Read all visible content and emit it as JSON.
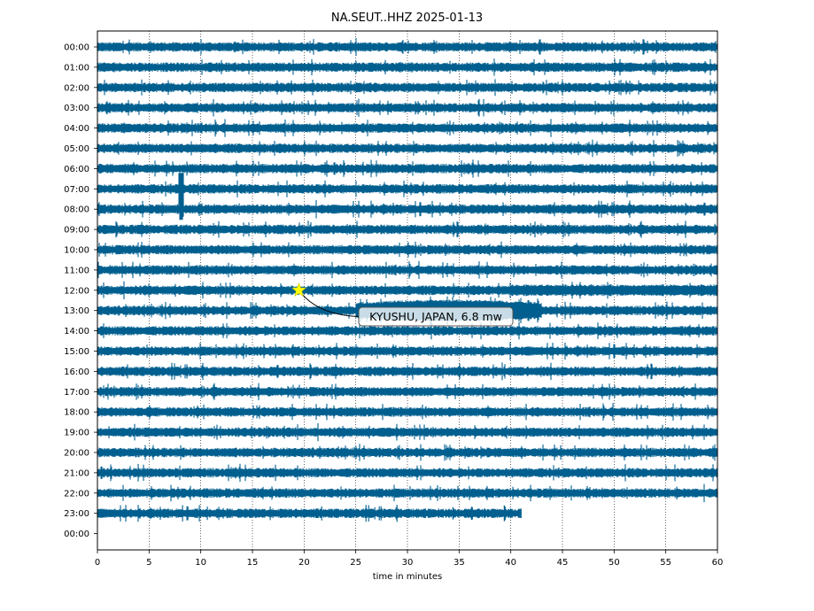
{
  "chart_data": {
    "type": "line",
    "title": "NA.SEUT..HHZ 2025-01-13",
    "xlabel": "time in minutes",
    "ylabel": "",
    "xlim": [
      0,
      60
    ],
    "x_ticks": [
      0,
      5,
      10,
      15,
      20,
      25,
      30,
      35,
      40,
      45,
      50,
      55,
      60
    ],
    "x_tick_labels": [
      "0",
      "5",
      "10",
      "15",
      "20",
      "25",
      "30",
      "35",
      "40",
      "45",
      "50",
      "55",
      "60"
    ],
    "grid": "vertical dotted",
    "trace_color": "#005f8f",
    "rows": [
      "00:00",
      "01:00",
      "02:00",
      "03:00",
      "04:00",
      "05:00",
      "06:00",
      "07:00",
      "08:00",
      "09:00",
      "10:00",
      "11:00",
      "12:00",
      "13:00",
      "14:00",
      "15:00",
      "16:00",
      "17:00",
      "18:00",
      "19:00",
      "20:00",
      "21:00",
      "22:00",
      "23:00",
      "00:00"
    ],
    "row_end_minutes": [
      60,
      60,
      60,
      60,
      60,
      60,
      60,
      60,
      60,
      60,
      60,
      60,
      60,
      60,
      60,
      60,
      60,
      60,
      60,
      60,
      60,
      60,
      60,
      41,
      0
    ],
    "event_marker": {
      "row": "12:00",
      "minute": 19.5,
      "color": "#ffff00",
      "label": "KYUSHU, JAPAN, 6.8 mw"
    }
  }
}
